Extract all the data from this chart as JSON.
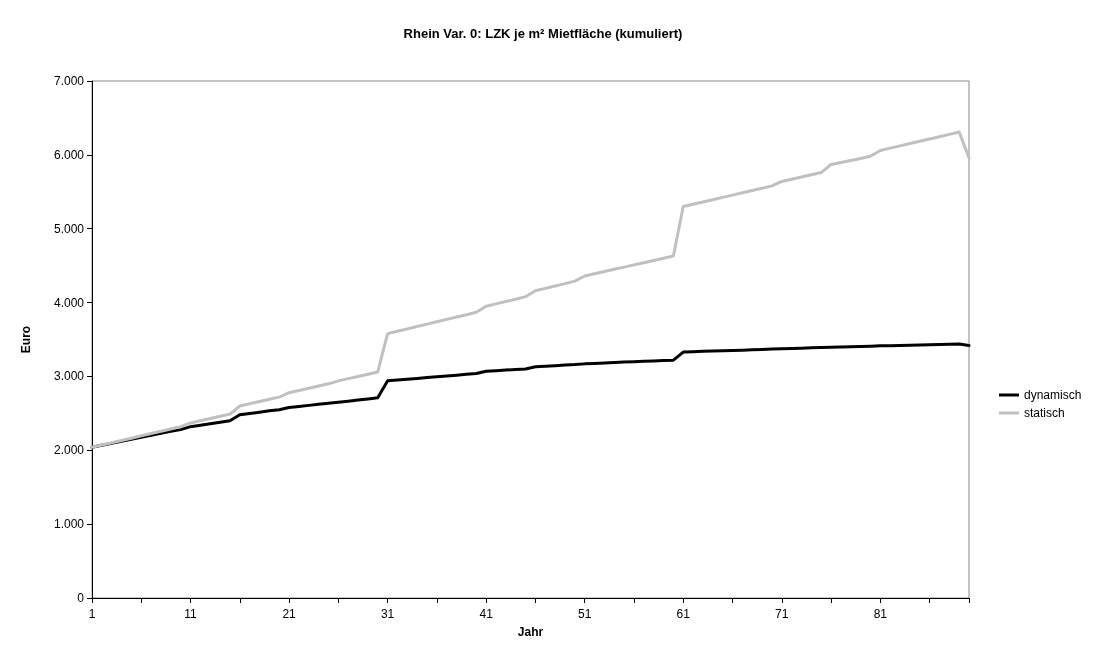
{
  "chart_data": {
    "type": "line",
    "title": "Rhein Var. 0: LZK je m² Mietfläche (kumuliert)",
    "xlabel": "Jahr",
    "ylabel": "Euro",
    "categories": [
      "1",
      null,
      null,
      null,
      null,
      null,
      null,
      null,
      null,
      null,
      "11",
      null,
      null,
      null,
      null,
      null,
      null,
      null,
      null,
      null,
      "21",
      null,
      null,
      null,
      null,
      null,
      null,
      null,
      null,
      null,
      "31",
      null,
      null,
      null,
      null,
      null,
      null,
      null,
      null,
      null,
      "41",
      null,
      null,
      null,
      null,
      null,
      null,
      null,
      null,
      null,
      "51",
      null,
      null,
      null,
      null,
      null,
      null,
      null,
      null,
      null,
      "61",
      null,
      null,
      null,
      null,
      null,
      null,
      null,
      null,
      null,
      "71",
      null,
      null,
      null,
      null,
      null,
      null,
      null,
      null,
      null,
      "81",
      null,
      null,
      null,
      null,
      null,
      null,
      null,
      null,
      null
    ],
    "series": [
      {
        "name": "dynamisch",
        "color": "#000000",
        "values": [
          2040,
          2067,
          2094,
          2121,
          2148,
          2175,
          2202,
          2229,
          2256,
          2280,
          2320,
          2340,
          2360,
          2380,
          2400,
          2480,
          2498,
          2516,
          2534,
          2550,
          2580,
          2594,
          2608,
          2622,
          2636,
          2650,
          2665,
          2680,
          2695,
          2710,
          2940,
          2951,
          2962,
          2973,
          2984,
          2995,
          3006,
          3017,
          3028,
          3040,
          3070,
          3078,
          3086,
          3094,
          3100,
          3130,
          3138,
          3146,
          3154,
          3160,
          3170,
          3176,
          3182,
          3188,
          3194,
          3200,
          3205,
          3210,
          3215,
          3220,
          3330,
          3335,
          3340,
          3344,
          3348,
          3352,
          3356,
          3360,
          3365,
          3370,
          3375,
          3379,
          3383,
          3387,
          3391,
          3396,
          3400,
          3403,
          3406,
          3410,
          3414,
          3417,
          3420,
          3423,
          3426,
          3429,
          3432,
          3436,
          3440,
          3420
        ]
      },
      {
        "name": "statisch",
        "color": "#c0c0c0",
        "values": [
          2040,
          2071,
          2102,
          2133,
          2164,
          2196,
          2227,
          2258,
          2289,
          2320,
          2370,
          2400,
          2430,
          2460,
          2490,
          2600,
          2630,
          2660,
          2690,
          2720,
          2780,
          2810,
          2840,
          2870,
          2900,
          2940,
          2970,
          3000,
          3030,
          3060,
          3580,
          3612,
          3644,
          3676,
          3708,
          3740,
          3772,
          3804,
          3836,
          3870,
          3950,
          3982,
          4014,
          4046,
          4080,
          4160,
          4192,
          4224,
          4256,
          4290,
          4360,
          4390,
          4420,
          4450,
          4480,
          4510,
          4540,
          4570,
          4600,
          4630,
          5300,
          5331,
          5362,
          5393,
          5424,
          5455,
          5486,
          5517,
          5548,
          5580,
          5640,
          5670,
          5700,
          5730,
          5760,
          5870,
          5897,
          5924,
          5951,
          5980,
          6060,
          6091,
          6122,
          6153,
          6184,
          6215,
          6246,
          6277,
          6310,
          5960
        ]
      }
    ],
    "ylim": [
      0,
      7000
    ],
    "yticks": [
      0,
      {
        "value": 1000,
        "label": "1.000"
      },
      {
        "value": 2000,
        "label": "2.000"
      },
      {
        "value": 3000,
        "label": "3.000"
      },
      {
        "value": 4000,
        "label": "4.000"
      },
      {
        "value": 5000,
        "label": "5.000"
      },
      {
        "value": 6000,
        "label": "6.000"
      },
      {
        "value": 7000,
        "label": "7.000"
      }
    ],
    "grid": false,
    "legend": "right",
    "marker": "none",
    "line_style": "solid"
  }
}
